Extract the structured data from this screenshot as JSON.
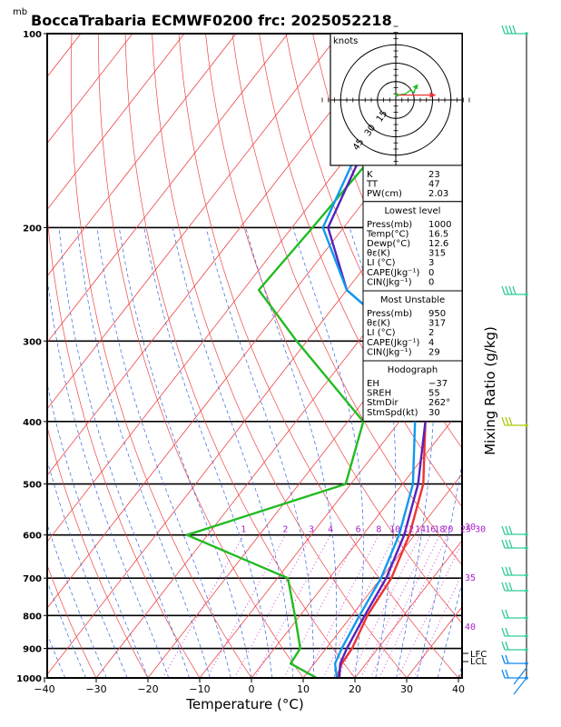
{
  "chart_data": {
    "type": "line",
    "title": "BoccaTrabaria ECMWF0200 frc: 2025052218",
    "xlabel": "Temperature (°C)",
    "ylabel_unit": "mb",
    "right_label": "Mixing Ratio  (g/kg)",
    "xlim": [
      -40,
      40
    ],
    "ylim": [
      1000,
      100
    ],
    "x_ticks": [
      "−40",
      "−30",
      "−20",
      "−10",
      "0",
      "10",
      "20",
      "30",
      "40"
    ],
    "pressure_ticks": [
      "100",
      "200",
      "300",
      "400",
      "500",
      "600",
      "700",
      "800",
      "900",
      "1000"
    ],
    "mixing_ratio_labels": [
      "1",
      "2",
      "3",
      "4",
      "6",
      "8",
      "10",
      "12",
      "14",
      "16",
      "18",
      "20",
      "25",
      "30"
    ],
    "dry_adiabat_labels": [
      "30",
      "35",
      "40"
    ],
    "level_labels": [
      "LFC",
      "LCL"
    ],
    "series": [
      {
        "name": "",
        "color": "#ee3333",
        "points": [
          [
            100,
            -1
          ],
          [
            150,
            -7
          ],
          [
            200,
            -16
          ],
          [
            250,
            -21
          ],
          [
            300,
            -17
          ],
          [
            400,
            -5
          ],
          [
            500,
            4
          ],
          [
            600,
            9
          ],
          [
            700,
            12
          ],
          [
            800,
            13
          ],
          [
            900,
            15
          ],
          [
            950,
            15.3
          ],
          [
            1000,
            16.5
          ]
        ]
      },
      {
        "name": "",
        "color": "#22bb22",
        "points": [
          [
            100,
            -52
          ],
          [
            150,
            -55
          ],
          [
            200,
            -56
          ],
          [
            250,
            -57
          ],
          [
            300,
            -42
          ],
          [
            400,
            -17
          ],
          [
            500,
            -11
          ],
          [
            600,
            -34
          ],
          [
            700,
            -8
          ],
          [
            800,
            -1
          ],
          [
            900,
            5
          ],
          [
            950,
            5.4
          ],
          [
            1000,
            12.6
          ]
        ]
      },
      {
        "name": "",
        "color": "#5522bb",
        "points": [
          [
            110,
            -59
          ],
          [
            150,
            -58
          ],
          [
            200,
            -53
          ],
          [
            250,
            -40
          ],
          [
            300,
            -21
          ],
          [
            400,
            -5
          ],
          [
            500,
            3
          ],
          [
            600,
            8
          ],
          [
            700,
            11
          ],
          [
            800,
            12.5
          ],
          [
            900,
            14
          ],
          [
            950,
            15
          ],
          [
            1000,
            17
          ]
        ]
      },
      {
        "name": "",
        "color": "#1199ee",
        "points": [
          [
            105,
            -60
          ],
          [
            150,
            -59
          ],
          [
            200,
            -54
          ],
          [
            250,
            -40
          ],
          [
            300,
            -21
          ],
          [
            400,
            -7
          ],
          [
            500,
            2
          ],
          [
            600,
            7
          ],
          [
            700,
            10
          ],
          [
            800,
            11.5
          ],
          [
            900,
            13
          ],
          [
            950,
            14
          ],
          [
            1000,
            16.5
          ]
        ]
      }
    ],
    "hodograph": {
      "units": "knots",
      "ring_labels": [
        "15",
        "30",
        "45"
      ],
      "green_trace_kt": [
        [
          1,
          4
        ],
        [
          8,
          5
        ],
        [
          12,
          8
        ],
        [
          15,
          6
        ],
        [
          16,
          10
        ]
      ],
      "storm_motion_arrow_kt": [
        [
          1,
          4
        ],
        [
          30,
          4
        ]
      ]
    },
    "wind_barbs_right": "present"
  },
  "indices": {
    "top": [
      {
        "label": "K",
        "value": "23"
      },
      {
        "label": "TT",
        "value": "47"
      },
      {
        "label": "PW(cm)",
        "value": "2.03"
      }
    ],
    "lowest": {
      "header": "Lowest level",
      "rows": [
        {
          "label": "Press(mb)",
          "value": "1000"
        },
        {
          "label": "Temp(°C)",
          "value": "16.5"
        },
        {
          "label": "Dewp(°C)",
          "value": "12.6"
        },
        {
          "label": "θε(K)",
          "value": "315"
        },
        {
          "label": "LI (°C)",
          "value": "3"
        },
        {
          "label": "CAPE(Jkg⁻¹)",
          "value": "0"
        },
        {
          "label": "CIN(Jkg⁻¹)",
          "value": "0"
        }
      ]
    },
    "unstable": {
      "header": "Most Unstable",
      "rows": [
        {
          "label": "Press(mb)",
          "value": "950"
        },
        {
          "label": "θε(K)",
          "value": "317"
        },
        {
          "label": "LI (°C)",
          "value": "2"
        },
        {
          "label": "CAPE(Jkg⁻¹)",
          "value": "4"
        },
        {
          "label": "CIN(Jkg⁻¹)",
          "value": "29"
        }
      ]
    },
    "hodo": {
      "header": "Hodograph",
      "rows": [
        {
          "label": "EH",
          "value": "−37"
        },
        {
          "label": "SREH",
          "value": "55"
        },
        {
          "label": "StmDir",
          "value": "262°"
        },
        {
          "label": "StmSpd(kt)",
          "value": "30"
        }
      ]
    }
  }
}
